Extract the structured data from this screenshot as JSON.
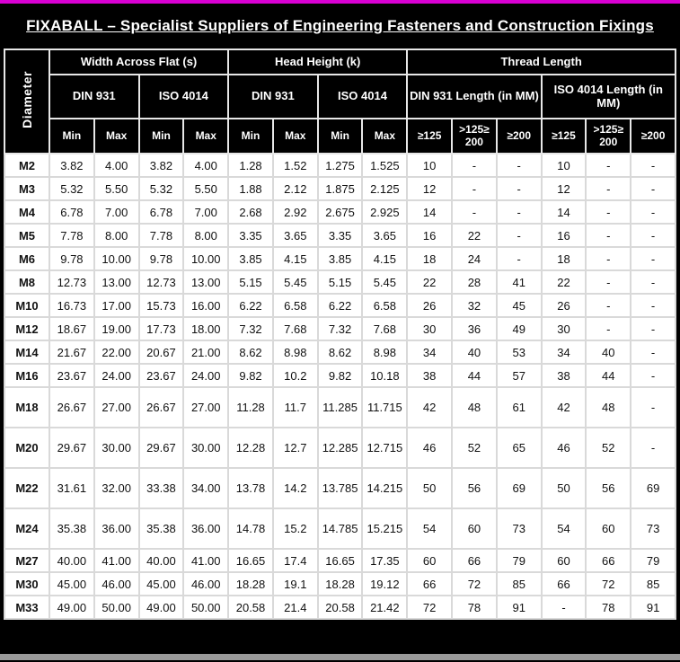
{
  "title": "FIXABALL – Specialist Suppliers of Engineering Fasteners and Construction Fixings",
  "colors": {
    "accent_line": "#D900D3",
    "header_bg": "#000000",
    "header_text": "#FFFFFF",
    "grid": "#D9D9D9",
    "bottom_bar": "#9A9A9A"
  },
  "header": {
    "diameter": "Diameter",
    "groups": [
      "Width Across Flat (s)",
      "Head Height (k)",
      "Thread Length"
    ],
    "group_spans": [
      4,
      4,
      6
    ],
    "subgroups": [
      "DIN 931",
      "ISO 4014",
      "DIN 931",
      "ISO 4014",
      "DIN 931 Length (in MM)",
      "ISO 4014 Length (in MM)"
    ],
    "subgroup_spans": [
      2,
      2,
      2,
      2,
      3,
      3
    ],
    "cols": [
      "Min",
      "Max",
      "Min",
      "Max",
      "Min",
      "Max",
      "Min",
      "Max",
      "≥125",
      ">125≥ 200",
      "≥200",
      "≥125",
      ">125≥ 200",
      "≥200"
    ]
  },
  "rows": [
    {
      "diameter": "M2",
      "values": [
        "3.82",
        "4.00",
        "3.82",
        "4.00",
        "1.28",
        "1.52",
        "1.275",
        "1.525",
        "10",
        "-",
        "-",
        "10",
        "-",
        "-"
      ]
    },
    {
      "diameter": "M3",
      "values": [
        "5.32",
        "5.50",
        "5.32",
        "5.50",
        "1.88",
        "2.12",
        "1.875",
        "2.125",
        "12",
        "-",
        "-",
        "12",
        "-",
        "-"
      ]
    },
    {
      "diameter": "M4",
      "values": [
        "6.78",
        "7.00",
        "6.78",
        "7.00",
        "2.68",
        "2.92",
        "2.675",
        "2.925",
        "14",
        "-",
        "-",
        "14",
        "-",
        "-"
      ]
    },
    {
      "diameter": "M5",
      "values": [
        "7.78",
        "8.00",
        "7.78",
        "8.00",
        "3.35",
        "3.65",
        "3.35",
        "3.65",
        "16",
        "22",
        "-",
        "16",
        "-",
        "-"
      ]
    },
    {
      "diameter": "M6",
      "values": [
        "9.78",
        "10.00",
        "9.78",
        "10.00",
        "3.85",
        "4.15",
        "3.85",
        "4.15",
        "18",
        "24",
        "-",
        "18",
        "-",
        "-"
      ]
    },
    {
      "diameter": "M8",
      "values": [
        "12.73",
        "13.00",
        "12.73",
        "13.00",
        "5.15",
        "5.45",
        "5.15",
        "5.45",
        "22",
        "28",
        "41",
        "22",
        "-",
        "-"
      ]
    },
    {
      "diameter": "M10",
      "values": [
        "16.73",
        "17.00",
        "15.73",
        "16.00",
        "6.22",
        "6.58",
        "6.22",
        "6.58",
        "26",
        "32",
        "45",
        "26",
        "-",
        "-"
      ]
    },
    {
      "diameter": "M12",
      "values": [
        "18.67",
        "19.00",
        "17.73",
        "18.00",
        "7.32",
        "7.68",
        "7.32",
        "7.68",
        "30",
        "36",
        "49",
        "30",
        "-",
        "-"
      ]
    },
    {
      "diameter": "M14",
      "values": [
        "21.67",
        "22.00",
        "20.67",
        "21.00",
        "8.62",
        "8.98",
        "8.62",
        "8.98",
        "34",
        "40",
        "53",
        "34",
        "40",
        "-"
      ]
    },
    {
      "diameter": "M16",
      "values": [
        "23.67",
        "24.00",
        "23.67",
        "24.00",
        "9.82",
        "10.2",
        "9.82",
        "10.18",
        "38",
        "44",
        "57",
        "38",
        "44",
        "-"
      ]
    },
    {
      "diameter": "M18",
      "values": [
        "26.67",
        "27.00",
        "26.67",
        "27.00",
        "11.28",
        "11.7",
        "11.285",
        "11.715",
        "42",
        "48",
        "61",
        "42",
        "48",
        "-"
      ]
    },
    {
      "diameter": "M20",
      "values": [
        "29.67",
        "30.00",
        "29.67",
        "30.00",
        "12.28",
        "12.7",
        "12.285",
        "12.715",
        "46",
        "52",
        "65",
        "46",
        "52",
        "-"
      ]
    },
    {
      "diameter": "M22",
      "values": [
        "31.61",
        "32.00",
        "33.38",
        "34.00",
        "13.78",
        "14.2",
        "13.785",
        "14.215",
        "50",
        "56",
        "69",
        "50",
        "56",
        "69"
      ]
    },
    {
      "diameter": "M24",
      "values": [
        "35.38",
        "36.00",
        "35.38",
        "36.00",
        "14.78",
        "15.2",
        "14.785",
        "15.215",
        "54",
        "60",
        "73",
        "54",
        "60",
        "73"
      ]
    },
    {
      "diameter": "M27",
      "values": [
        "40.00",
        "41.00",
        "40.00",
        "41.00",
        "16.65",
        "17.4",
        "16.65",
        "17.35",
        "60",
        "66",
        "79",
        "60",
        "66",
        "79"
      ]
    },
    {
      "diameter": "M30",
      "values": [
        "45.00",
        "46.00",
        "45.00",
        "46.00",
        "18.28",
        "19.1",
        "18.28",
        "19.12",
        "66",
        "72",
        "85",
        "66",
        "72",
        "85"
      ]
    },
    {
      "diameter": "M33",
      "values": [
        "49.00",
        "50.00",
        "49.00",
        "50.00",
        "20.58",
        "21.4",
        "20.58",
        "21.42",
        "72",
        "78",
        "91",
        "-",
        "78",
        "91"
      ]
    }
  ]
}
